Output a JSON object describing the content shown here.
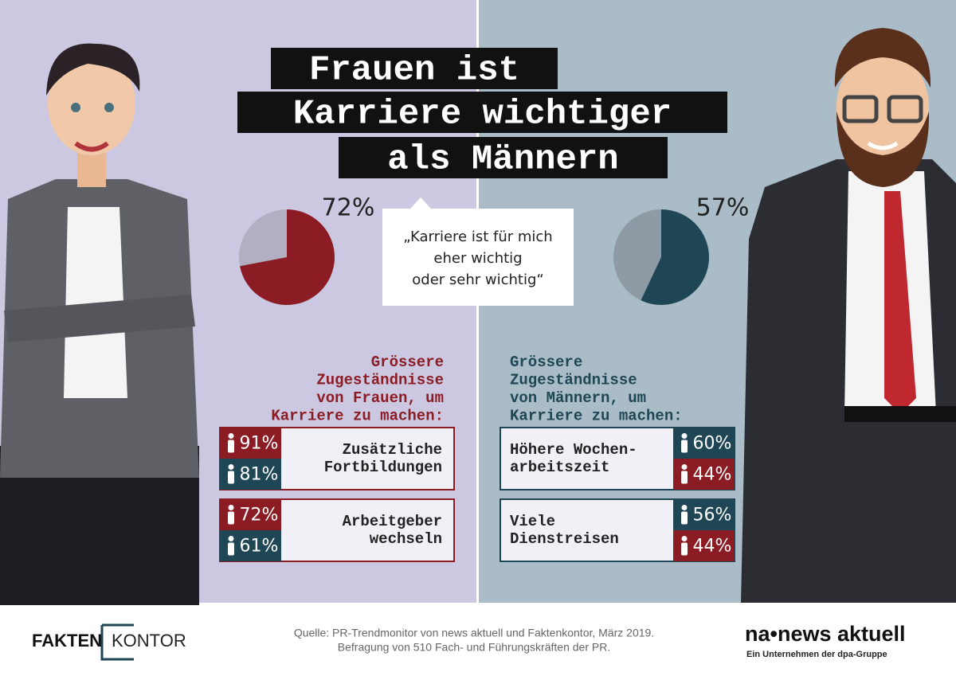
{
  "title": [
    "Frauen ist",
    "Karriere wichtiger",
    "als Männern"
  ],
  "chart_data": [
    {
      "type": "pie",
      "values": [
        72
      ],
      "value_labels": [
        "72%"
      ],
      "color": "#8b1c24"
    },
    {
      "type": "pie",
      "values": [
        57
      ],
      "value_labels": [
        "57%"
      ],
      "color": "#1e4654"
    }
  ],
  "quote": [
    "„Karriere ist für mich",
    "eher wichtig",
    "oder sehr wichtig“"
  ],
  "women": {
    "heading": [
      "Grössere",
      "Zugeständnisse",
      "von Frauen, um",
      "Karriere zu machen:"
    ],
    "items": [
      {
        "label": [
          "Zusätzliche",
          "Fortbildungen"
        ],
        "stats": [
          "91%",
          "81%"
        ]
      },
      {
        "label": [
          "Arbeitgeber",
          "wechseln"
        ],
        "stats": [
          "72%",
          "61%"
        ]
      }
    ]
  },
  "men": {
    "heading": [
      "Grössere",
      "Zugeständnisse",
      "von Männern, um",
      "Karriere zu machen:"
    ],
    "items": [
      {
        "label": [
          "Höhere Wochen-",
          "arbeitszeit"
        ],
        "stats": [
          "60%",
          "44%"
        ]
      },
      {
        "label": [
          "Viele",
          "Dienstreisen"
        ],
        "stats": [
          "56%",
          "44%"
        ]
      }
    ]
  },
  "footer": {
    "logo_left": [
      "FAKTEN",
      "KONTOR"
    ],
    "source": [
      "Quelle: PR-Trendmonitor von news aktuell und Faktenkontor, März 2019.",
      "Befragung von 510 Fach- und Führungskräften der PR."
    ],
    "logo_right": "na•news aktuell",
    "tagline": "Ein Unternehmen der dpa-Gruppe"
  }
}
